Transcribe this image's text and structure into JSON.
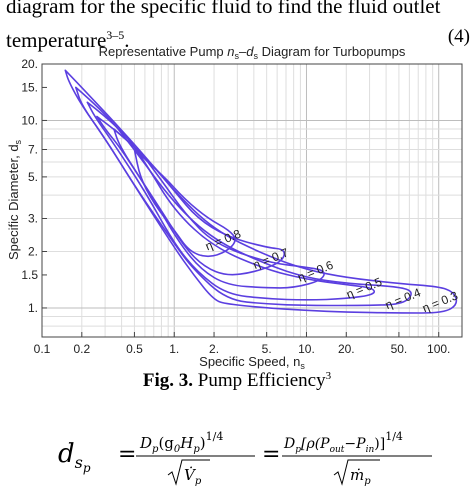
{
  "top_text": {
    "line1": "diagram for the specific fluid to find the fluid outlet",
    "line2": "temperature",
    "line2_sup": "3–5",
    "line2_end": "."
  },
  "caption": {
    "label": "Fig. 3.",
    "text": " Pump Efficiency",
    "sup": "3"
  },
  "equation": {
    "lhs": "d",
    "lhs_sub": "s",
    "lhs_subsub": "p",
    "num1": "D",
    "num1_sub": "p",
    "num1_paren": "(g",
    "num1_g_sub": "0",
    "num1_H": "H",
    "num1_H_sub": "p",
    "num1_close": ")",
    "exp": "1/4",
    "den1": "V̇",
    "den1_sub": "p",
    "num2": "D",
    "num2_sub": "p",
    "num2_body": "[ρ(P",
    "num2_out_sub": "out",
    "num2_minus": "−P",
    "num2_in_sub": "in",
    "num2_close": ")]",
    "den2": "ṁ",
    "den2_sub": "p",
    "equals": "=",
    "number": "(4)"
  },
  "chart_data": {
    "type": "line",
    "title": "Representative Pump n_s–d_s Diagram for Turbopumps",
    "title_parts": [
      "Representative Pump ",
      "n",
      "s",
      "–",
      "d",
      "s",
      " Diagram for Turbopumps"
    ],
    "xlabel": "Specific Speed, n",
    "xlabel_sub": "s",
    "ylabel": "Specific Diameter, d",
    "ylabel_sub": "s",
    "x_scale": "log",
    "y_scale": "log",
    "xlim": [
      0.1,
      150
    ],
    "ylim": [
      0.7,
      20
    ],
    "x_ticks": [
      {
        "v": 0.1,
        "label": "0.1"
      },
      {
        "v": 0.2,
        "label": "0.2"
      },
      {
        "v": 0.5,
        "label": "0.5"
      },
      {
        "v": 1,
        "label": "1."
      },
      {
        "v": 2,
        "label": "2."
      },
      {
        "v": 5,
        "label": "5."
      },
      {
        "v": 10,
        "label": "10."
      },
      {
        "v": 20,
        "label": "20."
      },
      {
        "v": 50,
        "label": "50."
      },
      {
        "v": 100,
        "label": "100."
      }
    ],
    "y_ticks": [
      {
        "v": 1,
        "label": "1."
      },
      {
        "v": 1.5,
        "label": "1.5"
      },
      {
        "v": 2,
        "label": "2."
      },
      {
        "v": 3,
        "label": "3."
      },
      {
        "v": 5,
        "label": "5."
      },
      {
        "v": 7,
        "label": "7."
      },
      {
        "v": 10,
        "label": "10."
      },
      {
        "v": 15,
        "label": "15."
      },
      {
        "v": 20,
        "label": "20."
      }
    ],
    "grid": true,
    "series_color": "#5b3fe0",
    "series": [
      {
        "name": "η = 0.3",
        "label_at": [
          105,
          1.03
        ],
        "points": [
          [
            0.15,
            18.5
          ],
          [
            0.2,
            15
          ],
          [
            0.5,
            7.5
          ],
          [
            1,
            4.2
          ],
          [
            2,
            2.6
          ],
          [
            5,
            1.9
          ],
          [
            10,
            1.6
          ],
          [
            20,
            1.45
          ],
          [
            50,
            1.35
          ],
          [
            100,
            1.3
          ],
          [
            130,
            1.22
          ],
          [
            140,
            1.05
          ],
          [
            110,
            0.94
          ],
          [
            50,
            0.94
          ],
          [
            20,
            0.95
          ],
          [
            10,
            0.97
          ],
          [
            5,
            1.0
          ],
          [
            2.5,
            1.05
          ],
          [
            2,
            1.1
          ],
          [
            1.4,
            1.5
          ],
          [
            1,
            2.1
          ],
          [
            0.5,
            4.5
          ],
          [
            0.3,
            8
          ],
          [
            0.2,
            12
          ],
          [
            0.16,
            16
          ],
          [
            0.15,
            18.5
          ]
        ]
      },
      {
        "name": "η = 0.4",
        "label_at": [
          55,
          1.07
        ],
        "points": [
          [
            0.18,
            15
          ],
          [
            0.3,
            11
          ],
          [
            0.5,
            7
          ],
          [
            1,
            3.6
          ],
          [
            2,
            2.3
          ],
          [
            5,
            1.7
          ],
          [
            10,
            1.45
          ],
          [
            20,
            1.35
          ],
          [
            50,
            1.3
          ],
          [
            65,
            1.22
          ],
          [
            55,
            1.05
          ],
          [
            30,
            1.03
          ],
          [
            10,
            1.03
          ],
          [
            5,
            1.05
          ],
          [
            2.5,
            1.1
          ],
          [
            1.4,
            1.6
          ],
          [
            1,
            2.2
          ],
          [
            0.5,
            4.5
          ],
          [
            0.3,
            8
          ],
          [
            0.2,
            12
          ],
          [
            0.18,
            15
          ]
        ]
      },
      {
        "name": "η = 0.5",
        "label_at": [
          28,
          1.22
        ],
        "points": [
          [
            0.22,
            12.5
          ],
          [
            0.4,
            9
          ],
          [
            0.6,
            6
          ],
          [
            1,
            3.3
          ],
          [
            2,
            2.1
          ],
          [
            5,
            1.6
          ],
          [
            10,
            1.42
          ],
          [
            20,
            1.33
          ],
          [
            32,
            1.28
          ],
          [
            33,
            1.18
          ],
          [
            20,
            1.12
          ],
          [
            10,
            1.1
          ],
          [
            5,
            1.12
          ],
          [
            2.5,
            1.18
          ],
          [
            1.5,
            1.55
          ],
          [
            1,
            2.2
          ],
          [
            0.6,
            4.2
          ],
          [
            0.35,
            7.5
          ],
          [
            0.25,
            10.5
          ],
          [
            0.22,
            12.5
          ]
        ]
      },
      {
        "name": "η = 0.6",
        "label_at": [
          12,
          1.5
        ],
        "points": [
          [
            0.26,
            10.5
          ],
          [
            0.5,
            7.5
          ],
          [
            0.8,
            4.8
          ],
          [
            1.2,
            3.2
          ],
          [
            2,
            2.2
          ],
          [
            5,
            1.75
          ],
          [
            10,
            1.65
          ],
          [
            14,
            1.58
          ],
          [
            13,
            1.4
          ],
          [
            8,
            1.28
          ],
          [
            5,
            1.28
          ],
          [
            2.5,
            1.32
          ],
          [
            1.6,
            1.6
          ],
          [
            1.1,
            2.2
          ],
          [
            0.7,
            3.8
          ],
          [
            0.4,
            7
          ],
          [
            0.3,
            9
          ],
          [
            0.26,
            10.5
          ]
        ]
      },
      {
        "name": "η = 0.7",
        "label_at": [
          5.5,
          1.75
        ],
        "points": [
          [
            0.35,
            9
          ],
          [
            0.6,
            6.5
          ],
          [
            1,
            4.2
          ],
          [
            1.5,
            3
          ],
          [
            2.5,
            2.4
          ],
          [
            5,
            2.1
          ],
          [
            7,
            2.05
          ],
          [
            6.5,
            1.75
          ],
          [
            4,
            1.55
          ],
          [
            2.5,
            1.48
          ],
          [
            1.7,
            1.65
          ],
          [
            1.2,
            2.1
          ],
          [
            0.8,
            3.3
          ],
          [
            0.5,
            5.5
          ],
          [
            0.38,
            7.5
          ],
          [
            0.35,
            9
          ]
        ]
      },
      {
        "name": "η = 0.8",
        "label_at": [
          2.4,
          2.2
        ],
        "points": [
          [
            0.5,
            7
          ],
          [
            0.8,
            5.2
          ],
          [
            1.2,
            3.8
          ],
          [
            1.8,
            3.0
          ],
          [
            2.6,
            2.6
          ],
          [
            3.0,
            2.3
          ],
          [
            2.5,
            2.0
          ],
          [
            1.8,
            1.85
          ],
          [
            1.3,
            2.0
          ],
          [
            1.0,
            2.6
          ],
          [
            0.7,
            3.6
          ],
          [
            0.55,
            5
          ],
          [
            0.5,
            7
          ]
        ]
      }
    ]
  }
}
